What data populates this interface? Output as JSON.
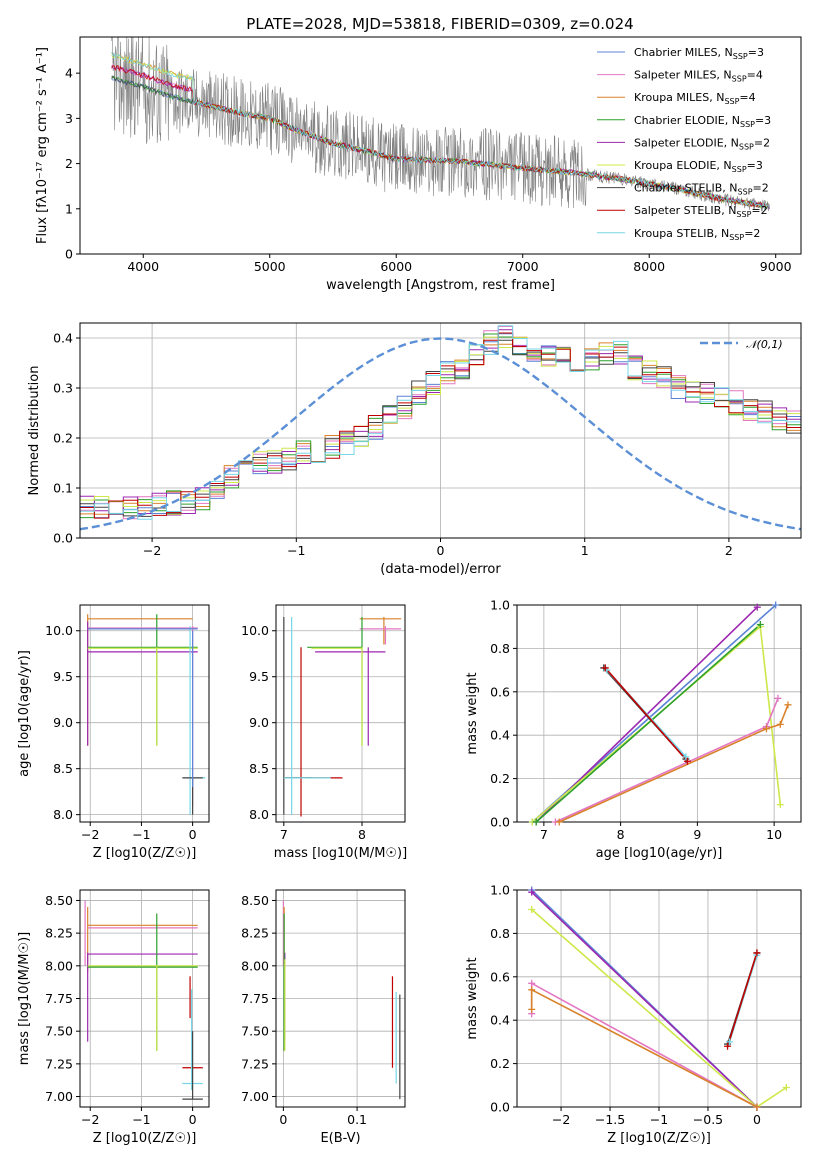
{
  "figure_title": "PLATE=2028, MJD=53818, FIBERID=0309, z=0.024",
  "legend_models": [
    {
      "label": "Chabrier MILES, N",
      "sub": "SSP",
      "suffix": "=3",
      "color": "#5b83d6"
    },
    {
      "label": "Salpeter MILES, N",
      "sub": "SSP",
      "suffix": "=4",
      "color": "#e377c2"
    },
    {
      "label": "Kroupa MILES, N",
      "sub": "SSP",
      "suffix": "=4",
      "color": "#d9822b"
    },
    {
      "label": "Chabrier ELODIE, N",
      "sub": "SSP",
      "suffix": "=3",
      "color": "#2ca02c"
    },
    {
      "label": "Salpeter ELODIE, N",
      "sub": "SSP",
      "suffix": "=2",
      "color": "#9c27b0"
    },
    {
      "label": "Kroupa ELODIE, N",
      "sub": "SSP",
      "suffix": "=3",
      "color": "#cde84a"
    },
    {
      "label": "Chabrier STELIB, N",
      "sub": "SSP",
      "suffix": "=2",
      "color": "#444444"
    },
    {
      "label": "Salpeter STELIB, N",
      "sub": "SSP",
      "suffix": "=2",
      "color": "#c00000"
    },
    {
      "label": "Kroupa STELIB, N",
      "sub": "SSP",
      "suffix": "=2",
      "color": "#76d7e6"
    }
  ],
  "chart_data": [
    {
      "id": "spectrum",
      "type": "line",
      "title": "PLATE=2028, MJD=53818, FIBERID=0309, z=0.024",
      "xlabel": "wavelength [Angstrom, rest frame]",
      "ylabel": "Flux [fλ10⁻¹⁷ erg cm⁻² s⁻¹ A⁻¹]",
      "xlim": [
        3500,
        9200
      ],
      "ylim": [
        0,
        4.8
      ],
      "xticks": [
        4000,
        5000,
        6000,
        7000,
        8000,
        9000
      ],
      "yticks": [
        0,
        1,
        2,
        3,
        4
      ],
      "data_color": "#808080",
      "continuum_x": [
        3750,
        4000,
        4200,
        4500,
        4800,
        5000,
        5200,
        5500,
        5800,
        6000,
        6500,
        7000,
        7400,
        7800,
        8200,
        8600,
        8950
      ],
      "continuum_y": [
        3.9,
        3.7,
        3.5,
        3.3,
        3.1,
        3.0,
        2.75,
        2.45,
        2.25,
        2.1,
        2.05,
        1.9,
        1.8,
        1.65,
        1.45,
        1.2,
        1.05
      ],
      "noise_level": 0.8,
      "series": [
        {
          "name": "Chabrier MILES, NSSP=3",
          "color": "#5b83d6"
        },
        {
          "name": "Salpeter MILES, NSSP=4",
          "color": "#e377c2"
        },
        {
          "name": "Kroupa MILES, NSSP=4",
          "color": "#d9822b"
        },
        {
          "name": "Chabrier ELODIE, NSSP=3",
          "color": "#2ca02c"
        },
        {
          "name": "Salpeter ELODIE, NSSP=2",
          "color": "#9c27b0"
        },
        {
          "name": "Kroupa ELODIE, NSSP=3",
          "color": "#cde84a"
        },
        {
          "name": "Chabrier STELIB, NSSP=2",
          "color": "#444444"
        },
        {
          "name": "Salpeter STELIB, NSSP=2",
          "color": "#c00000"
        },
        {
          "name": "Kroupa STELIB, NSSP=2",
          "color": "#76d7e6"
        }
      ],
      "legend_position": "top-right"
    },
    {
      "id": "residuals",
      "type": "line",
      "xlabel": "(data-model)/error",
      "ylabel": "Normed distribution",
      "xlim": [
        -2.5,
        2.5
      ],
      "ylim": [
        0,
        0.43
      ],
      "xticks": [
        -2,
        -1,
        0,
        1,
        2
      ],
      "yticks": [
        0.0,
        0.1,
        0.2,
        0.3,
        0.4
      ],
      "grid": true,
      "reference_curve": {
        "name": "𝒩(0,1)",
        "color": "#5b8fd6",
        "style": "dashed"
      },
      "hist_bin_width": 0.1,
      "hist_base": [
        0.06,
        0.06,
        0.06,
        0.06,
        0.06,
        0.07,
        0.07,
        0.07,
        0.08,
        0.09,
        0.12,
        0.14,
        0.15,
        0.15,
        0.16,
        0.17,
        0.17,
        0.18,
        0.19,
        0.2,
        0.22,
        0.24,
        0.26,
        0.29,
        0.31,
        0.33,
        0.34,
        0.37,
        0.39,
        0.4,
        0.38,
        0.37,
        0.36,
        0.36,
        0.35,
        0.36,
        0.37,
        0.37,
        0.34,
        0.33,
        0.32,
        0.3,
        0.29,
        0.29,
        0.28,
        0.27,
        0.26,
        0.25,
        0.24,
        0.23,
        0.22,
        0.2,
        0.18,
        0.17,
        0.16,
        0.15,
        0.13,
        0.12,
        0.11,
        0.1,
        0.09,
        0.09,
        0.08,
        0.07,
        0.06,
        0.06,
        0.05,
        0.05,
        0.04,
        0.04,
        0.03,
        0.03,
        0.03,
        0.03
      ],
      "hist_x_start": -2.5,
      "series": [
        {
          "name": "Chabrier MILES, NSSP=3",
          "color": "#5b83d6",
          "seed": 1
        },
        {
          "name": "Salpeter MILES, NSSP=4",
          "color": "#e377c2",
          "seed": 2
        },
        {
          "name": "Kroupa MILES, NSSP=4",
          "color": "#d9822b",
          "seed": 3
        },
        {
          "name": "Chabrier ELODIE, NSSP=3",
          "color": "#2ca02c",
          "seed": 4
        },
        {
          "name": "Salpeter ELODIE, NSSP=2",
          "color": "#9c27b0",
          "seed": 5
        },
        {
          "name": "Kroupa ELODIE, NSSP=3",
          "color": "#cde84a",
          "seed": 6
        },
        {
          "name": "Chabrier STELIB, NSSP=2",
          "color": "#444444",
          "seed": 7
        },
        {
          "name": "Salpeter STELIB, NSSP=2",
          "color": "#c00000",
          "seed": 8
        },
        {
          "name": "Kroupa STELIB, NSSP=2",
          "color": "#76d7e6",
          "seed": 9
        }
      ],
      "legend_position": "top-right"
    },
    {
      "id": "age-vs-Z",
      "type": "scatter",
      "xlabel": "Z [log10(Z/Z☉)]",
      "ylabel": "age [log10(age/yr)]",
      "xlim": [
        -2.2,
        0.32
      ],
      "ylim": [
        7.92,
        10.28
      ],
      "xticks": [
        -2,
        -1,
        0
      ],
      "yticks": [
        8.0,
        8.5,
        9.0,
        9.5,
        10.0
      ],
      "grid": true,
      "segments": [
        {
          "color": "#d9822b",
          "h": [
            -2.05,
            0.0,
            10.13
          ],
          "v": [
            -2.05,
            8.75,
            10.18
          ]
        },
        {
          "color": "#e377c2",
          "h": [
            -2.05,
            0.1,
            10.03
          ],
          "v": [
            0.0,
            8.1,
            10.05
          ]
        },
        {
          "color": "#9c27b0",
          "h": [
            -2.05,
            0.1,
            9.77
          ],
          "v": [
            -2.05,
            8.75,
            10.1
          ]
        },
        {
          "color": "#2ca02c",
          "h": [
            -2.05,
            0.1,
            9.82
          ],
          "v": [
            -0.7,
            8.75,
            10.18
          ]
        },
        {
          "color": "#cde84a",
          "h": [
            -2.05,
            0.1,
            9.81
          ],
          "v": [
            -0.7,
            8.75,
            9.82
          ]
        },
        {
          "color": "#76d7e6",
          "h": [
            -0.2,
            0.25,
            8.4
          ],
          "v": [
            -0.05,
            8.0,
            10.05
          ]
        },
        {
          "color": "#444444",
          "h": [
            -0.2,
            0.2,
            8.4
          ],
          "v": [
            0.0,
            8.0,
            8.4
          ]
        },
        {
          "color": "#5b83d6",
          "h": [
            -2.05,
            0.1,
            10.02
          ],
          "v": [
            0.0,
            8.3,
            10.0
          ]
        }
      ]
    },
    {
      "id": "age-vs-mass",
      "type": "scatter",
      "xlabel": "mass [log10(M/M☉)]",
      "ylabel": "",
      "xlim": [
        6.9,
        8.55
      ],
      "ylim": [
        7.92,
        10.28
      ],
      "xticks": [
        7,
        8
      ],
      "yticks": [
        8.0,
        8.5,
        9.0,
        9.5,
        10.0
      ],
      "grid": true,
      "segments": [
        {
          "color": "#d9822b",
          "h": [
            7.97,
            8.5,
            10.13
          ],
          "v": [
            8.28,
            9.85,
            10.15
          ]
        },
        {
          "color": "#e377c2",
          "h": [
            7.97,
            8.5,
            10.02
          ],
          "v": [
            8.3,
            9.85,
            10.05
          ]
        },
        {
          "color": "#9c27b0",
          "h": [
            7.4,
            8.3,
            9.77
          ],
          "v": [
            8.08,
            8.75,
            9.82
          ]
        },
        {
          "color": "#2ca02c",
          "h": [
            7.3,
            8.0,
            9.82
          ],
          "v": [
            8.0,
            8.75,
            10.15
          ]
        },
        {
          "color": "#cde84a",
          "h": [
            7.35,
            8.0,
            9.81
          ],
          "v": [
            8.0,
            8.75,
            9.82
          ]
        },
        {
          "color": "#c00000",
          "h": [
            7.0,
            7.75,
            8.4
          ],
          "v": [
            7.22,
            7.98,
            9.82
          ]
        },
        {
          "color": "#444444",
          "h": [
            7.0,
            7.35,
            8.4
          ],
          "v": [
            7.0,
            8.0,
            10.15
          ]
        },
        {
          "color": "#76d7e6",
          "h": [
            7.0,
            7.6,
            8.4
          ],
          "v": [
            7.1,
            8.0,
            10.15
          ]
        }
      ]
    },
    {
      "id": "massweight-vs-age",
      "type": "line",
      "xlabel": "age [log10(age/yr)]",
      "ylabel": "mass weight",
      "xlim": [
        6.65,
        10.35
      ],
      "ylim": [
        0,
        1
      ],
      "xticks": [
        7,
        8,
        9,
        10
      ],
      "yticks": [
        0.0,
        0.2,
        0.4,
        0.6,
        0.8,
        1.0
      ],
      "grid": true,
      "series": [
        {
          "color": "#5b83d6",
          "x": [
            6.85,
            10.02
          ],
          "y": [
            0.0,
            1.0
          ]
        },
        {
          "color": "#9c27b0",
          "x": [
            6.9,
            9.78
          ],
          "y": [
            0.0,
            0.99
          ]
        },
        {
          "color": "#cde84a",
          "x": [
            6.85,
            9.82,
            10.08
          ],
          "y": [
            0.0,
            0.9,
            0.08
          ]
        },
        {
          "color": "#2ca02c",
          "x": [
            6.9,
            9.82
          ],
          "y": [
            0.0,
            0.91
          ]
        },
        {
          "color": "#e377c2",
          "x": [
            7.15,
            9.9,
            10.05
          ],
          "y": [
            0.0,
            0.44,
            0.57
          ]
        },
        {
          "color": "#d9822b",
          "x": [
            7.2,
            9.9,
            10.08,
            10.18
          ],
          "y": [
            0.0,
            0.43,
            0.45,
            0.54
          ]
        },
        {
          "color": "#444444",
          "x": [
            7.78,
            8.85
          ],
          "y": [
            0.71,
            0.29
          ]
        },
        {
          "color": "#76d7e6",
          "x": [
            7.82,
            8.85
          ],
          "y": [
            0.7,
            0.3
          ]
        },
        {
          "color": "#c00000",
          "x": [
            7.8,
            8.87
          ],
          "y": [
            0.71,
            0.28
          ]
        }
      ]
    },
    {
      "id": "mass-vs-Z",
      "type": "scatter",
      "xlabel": "Z [log10(Z/Z☉)]",
      "ylabel": "mass [log10(M/M☉)]",
      "xlim": [
        -2.2,
        0.32
      ],
      "ylim": [
        6.92,
        8.58
      ],
      "xticks": [
        -2,
        -1,
        0
      ],
      "yticks": [
        7.0,
        7.25,
        7.5,
        7.75,
        8.0,
        8.25,
        8.5
      ],
      "grid": true,
      "segments": [
        {
          "color": "#d9822b",
          "h": [
            -2.05,
            0.1,
            8.31
          ],
          "v": [
            -2.05,
            7.95,
            8.45
          ]
        },
        {
          "color": "#e377c2",
          "h": [
            -2.05,
            0.1,
            8.29
          ],
          "v": [
            -2.1,
            8.0,
            8.5
          ]
        },
        {
          "color": "#9c27b0",
          "h": [
            -2.05,
            0.1,
            8.09
          ],
          "v": [
            -2.05,
            7.42,
            8.1
          ]
        },
        {
          "color": "#2ca02c",
          "h": [
            -2.05,
            0.1,
            7.99
          ],
          "v": [
            -0.7,
            7.35,
            8.4
          ]
        },
        {
          "color": "#cde84a",
          "h": [
            -2.05,
            0.1,
            8.0
          ],
          "v": [
            -0.7,
            7.35,
            8.0
          ]
        },
        {
          "color": "#c00000",
          "h": [
            -0.2,
            0.2,
            7.22
          ],
          "v": [
            -0.05,
            7.6,
            7.92
          ]
        },
        {
          "color": "#76d7e6",
          "h": [
            -0.2,
            0.2,
            7.1
          ],
          "v": [
            -0.02,
            7.05,
            7.82
          ]
        },
        {
          "color": "#444444",
          "h": [
            -0.2,
            0.2,
            6.98
          ],
          "v": [
            0.0,
            6.98,
            7.5
          ]
        }
      ]
    },
    {
      "id": "mass-vs-ebv",
      "type": "scatter",
      "xlabel": "E(B-V)",
      "ylabel": "",
      "xlim": [
        -0.01,
        0.165
      ],
      "ylim": [
        6.92,
        8.58
      ],
      "xticks": [
        0.0,
        0.1
      ],
      "yticks": [
        7.0,
        7.25,
        7.5,
        7.75,
        8.0,
        8.25,
        8.5
      ],
      "grid": true,
      "segments": [
        {
          "color": "#e377c2",
          "h": null,
          "v": [
            0.0,
            8.0,
            8.5
          ]
        },
        {
          "color": "#d9822b",
          "h": null,
          "v": [
            0.001,
            7.95,
            8.45
          ]
        },
        {
          "color": "#9c27b0",
          "h": null,
          "v": [
            0.002,
            7.42,
            8.1
          ]
        },
        {
          "color": "#2ca02c",
          "h": null,
          "v": [
            0.001,
            7.35,
            8.4
          ]
        },
        {
          "color": "#cde84a",
          "h": null,
          "v": [
            0.002,
            7.35,
            8.05
          ]
        },
        {
          "color": "#c00000",
          "h": null,
          "v": [
            0.148,
            7.22,
            7.92
          ]
        },
        {
          "color": "#76d7e6",
          "h": null,
          "v": [
            0.153,
            7.1,
            7.8
          ]
        },
        {
          "color": "#444444",
          "h": null,
          "v": [
            0.158,
            6.98,
            7.78
          ]
        }
      ]
    },
    {
      "id": "massweight-vs-Z",
      "type": "line",
      "xlabel": "Z [log10(Z/Z☉)]",
      "ylabel": "mass weight",
      "xlim": [
        -2.45,
        0.45
      ],
      "ylim": [
        0,
        1
      ],
      "xticks": [
        -2.0,
        -1.5,
        -1.0,
        -0.5,
        0.0
      ],
      "yticks": [
        0.0,
        0.2,
        0.4,
        0.6,
        0.8,
        1.0
      ],
      "grid": true,
      "series": [
        {
          "color": "#5b83d6",
          "x": [
            -2.3,
            0.0
          ],
          "y": [
            1.0,
            0.0
          ]
        },
        {
          "color": "#9c27b0",
          "x": [
            -2.3,
            0.0
          ],
          "y": [
            0.99,
            0.0
          ]
        },
        {
          "color": "#cde84a",
          "x": [
            -2.3,
            0.0,
            0.3
          ],
          "y": [
            0.91,
            0.0,
            0.09
          ]
        },
        {
          "color": "#e377c2",
          "x": [
            -2.3,
            -2.3,
            0.0
          ],
          "y": [
            0.43,
            0.57,
            0.0
          ]
        },
        {
          "color": "#d9822b",
          "x": [
            -2.3,
            -2.3,
            0.0
          ],
          "y": [
            0.45,
            0.54,
            0.0
          ]
        },
        {
          "color": "#444444",
          "x": [
            -0.3,
            0.0
          ],
          "y": [
            0.29,
            0.71
          ]
        },
        {
          "color": "#76d7e6",
          "x": [
            -0.28,
            0.0
          ],
          "y": [
            0.3,
            0.7
          ]
        },
        {
          "color": "#c00000",
          "x": [
            -0.3,
            0.0
          ],
          "y": [
            0.28,
            0.71
          ]
        }
      ]
    }
  ]
}
